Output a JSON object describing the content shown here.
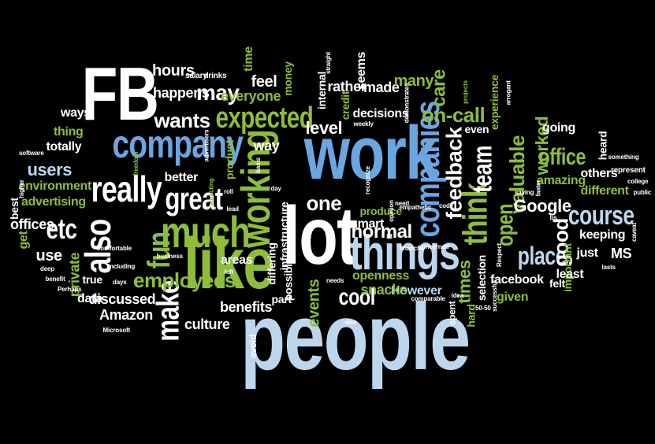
{
  "palette": {
    "background": "#000000",
    "white": "#ffffff",
    "light_blue": "#bcd6ee",
    "sky_blue": "#6aa6e0",
    "green": "#8dbd3a",
    "pale_green": "#c8e07a"
  },
  "words": [
    {
      "text": "people",
      "color": "light_blue"
    },
    {
      "text": "work",
      "color": "sky_blue"
    },
    {
      "text": "lot",
      "color": "white"
    },
    {
      "text": "like",
      "color": "green"
    },
    {
      "text": "FB",
      "color": "white"
    },
    {
      "text": "company",
      "color": "sky_blue"
    },
    {
      "text": "things",
      "color": "light_blue"
    },
    {
      "text": "much",
      "color": "green"
    },
    {
      "text": "really",
      "color": "white"
    },
    {
      "text": "working",
      "color": "green"
    },
    {
      "text": "great",
      "color": "white"
    },
    {
      "text": "expected",
      "color": "green"
    },
    {
      "text": "companies",
      "color": "sky_blue"
    },
    {
      "text": "think",
      "color": "green"
    },
    {
      "text": "also",
      "color": "white"
    },
    {
      "text": "course",
      "color": "light_blue"
    },
    {
      "text": "fun",
      "color": "green"
    },
    {
      "text": "make",
      "color": "white"
    },
    {
      "text": "employees",
      "color": "green"
    },
    {
      "text": "etc",
      "color": "white"
    },
    {
      "text": "team",
      "color": "white"
    },
    {
      "text": "feedback",
      "color": "white"
    },
    {
      "text": "open",
      "color": "green"
    },
    {
      "text": "valuable",
      "color": "green"
    },
    {
      "text": "times",
      "color": "green"
    },
    {
      "text": "place",
      "color": "light_blue"
    },
    {
      "text": "office",
      "color": "green"
    },
    {
      "text": "Google",
      "color": "white"
    },
    {
      "text": "good",
      "color": "white"
    },
    {
      "text": "one",
      "color": "white"
    },
    {
      "text": "cool",
      "color": "white"
    },
    {
      "text": "normal",
      "color": "white"
    },
    {
      "text": "wants",
      "color": "white"
    },
    {
      "text": "users",
      "color": "light_blue"
    },
    {
      "text": "may",
      "color": "white"
    },
    {
      "text": "level",
      "color": "white"
    },
    {
      "text": "on-call",
      "color": "green"
    },
    {
      "text": "worked",
      "color": "green"
    },
    {
      "text": "hours",
      "color": "white"
    },
    {
      "text": "happens",
      "color": "white"
    },
    {
      "text": "feel",
      "color": "white"
    },
    {
      "text": "made",
      "color": "white"
    },
    {
      "text": "many",
      "color": "green"
    },
    {
      "text": "care",
      "color": "green"
    },
    {
      "text": "events",
      "color": "green"
    },
    {
      "text": "culture",
      "color": "white"
    },
    {
      "text": "benefits",
      "color": "white"
    },
    {
      "text": "Amazon",
      "color": "white"
    },
    {
      "text": "discussed",
      "color": "white"
    },
    {
      "text": "data",
      "color": "white"
    },
    {
      "text": "private",
      "color": "green"
    },
    {
      "text": "true",
      "color": "white"
    },
    {
      "text": "use",
      "color": "white"
    },
    {
      "text": "offices",
      "color": "white"
    },
    {
      "text": "get",
      "color": "green"
    },
    {
      "text": "advertising",
      "color": "green"
    },
    {
      "text": "environment",
      "color": "green"
    },
    {
      "text": "totally",
      "color": "white"
    },
    {
      "text": "thing",
      "color": "green"
    },
    {
      "text": "ways",
      "color": "white"
    },
    {
      "text": "best",
      "color": "white"
    },
    {
      "text": "better",
      "color": "white"
    },
    {
      "text": "product",
      "color": "green"
    },
    {
      "text": "everyone",
      "color": "green"
    },
    {
      "text": "money",
      "color": "green"
    },
    {
      "text": "internal",
      "color": "white"
    },
    {
      "text": "rather",
      "color": "white"
    },
    {
      "text": "seems",
      "color": "white"
    },
    {
      "text": "decisions",
      "color": "white"
    },
    {
      "text": "credit",
      "color": "green"
    },
    {
      "text": "way",
      "color": "white"
    },
    {
      "text": "time",
      "color": "green"
    },
    {
      "text": "experience",
      "color": "green"
    },
    {
      "text": "even",
      "color": "white"
    },
    {
      "text": "going",
      "color": "white"
    },
    {
      "text": "heard",
      "color": "white"
    },
    {
      "text": "others",
      "color": "white"
    },
    {
      "text": "amazing",
      "color": "green"
    },
    {
      "text": "different",
      "color": "green"
    },
    {
      "text": "keeping",
      "color": "white"
    },
    {
      "text": "just",
      "color": "white"
    },
    {
      "text": "MS",
      "color": "white"
    },
    {
      "text": "important",
      "color": "green"
    },
    {
      "text": "least",
      "color": "white"
    },
    {
      "text": "felt",
      "color": "white"
    },
    {
      "text": "facebook",
      "color": "white"
    },
    {
      "text": "given",
      "color": "green"
    },
    {
      "text": "hard",
      "color": "green"
    },
    {
      "text": "spent",
      "color": "white"
    },
    {
      "text": "selection",
      "color": "white"
    },
    {
      "text": "However",
      "color": "light_blue"
    },
    {
      "text": "snacks",
      "color": "green"
    },
    {
      "text": "openness",
      "color": "green"
    },
    {
      "text": "smart",
      "color": "white"
    },
    {
      "text": "produce",
      "color": "green"
    },
    {
      "text": "infrastructure",
      "color": "white"
    },
    {
      "text": "differing",
      "color": "white"
    },
    {
      "text": "possible",
      "color": "white"
    },
    {
      "text": "part",
      "color": "white"
    },
    {
      "text": "avoid",
      "color": "white"
    },
    {
      "text": "areas",
      "color": "white"
    },
    {
      "text": "salary",
      "color": "white"
    },
    {
      "text": "drinks",
      "color": "white"
    },
    {
      "text": "straight",
      "color": "white"
    },
    {
      "text": "demonstrates",
      "color": "white"
    },
    {
      "text": "weekly",
      "color": "white"
    },
    {
      "text": "basis",
      "color": "white"
    },
    {
      "text": "advertisers",
      "color": "white"
    },
    {
      "text": "freedom",
      "color": "green"
    },
    {
      "text": "software",
      "color": "white"
    },
    {
      "text": "comfortable",
      "color": "white"
    },
    {
      "text": "including",
      "color": "white"
    },
    {
      "text": "days",
      "color": "white"
    },
    {
      "text": "business",
      "color": "white"
    },
    {
      "text": "Microsoft",
      "color": "white"
    },
    {
      "text": "Perhaps",
      "color": "white"
    },
    {
      "text": "benefit",
      "color": "white"
    },
    {
      "text": "deep",
      "color": "white"
    },
    {
      "text": "higher",
      "color": "white"
    },
    {
      "text": "roll",
      "color": "white"
    },
    {
      "text": "lead",
      "color": "white"
    },
    {
      "text": "left",
      "color": "white"
    },
    {
      "text": "day",
      "color": "white"
    },
    {
      "text": "attracting",
      "color": "green"
    },
    {
      "text": "need",
      "color": "white"
    },
    {
      "text": "recognize",
      "color": "white"
    },
    {
      "text": "opinion",
      "color": "white"
    },
    {
      "text": "empathetic",
      "color": "white"
    },
    {
      "text": "code",
      "color": "white"
    },
    {
      "text": "financial",
      "color": "white"
    },
    {
      "text": "concerned",
      "color": "white"
    },
    {
      "text": "needs",
      "color": "white"
    },
    {
      "text": "comparable",
      "color": "white"
    },
    {
      "text": "else",
      "color": "white"
    },
    {
      "text": "idea",
      "color": "white"
    },
    {
      "text": "50-50",
      "color": "white"
    },
    {
      "text": "successful",
      "color": "white"
    },
    {
      "text": "Respect",
      "color": "white"
    },
    {
      "text": "saying",
      "color": "white"
    },
    {
      "text": "faster",
      "color": "white"
    },
    {
      "text": "bs",
      "color": "white"
    },
    {
      "text": "projects",
      "color": "green"
    },
    {
      "text": "arrogant",
      "color": "white"
    },
    {
      "text": "something",
      "color": "white"
    },
    {
      "text": "represent",
      "color": "white"
    },
    {
      "text": "college",
      "color": "white"
    },
    {
      "text": "public",
      "color": "white"
    },
    {
      "text": "caveat",
      "color": "white"
    },
    {
      "text": "lasts",
      "color": "white"
    }
  ]
}
